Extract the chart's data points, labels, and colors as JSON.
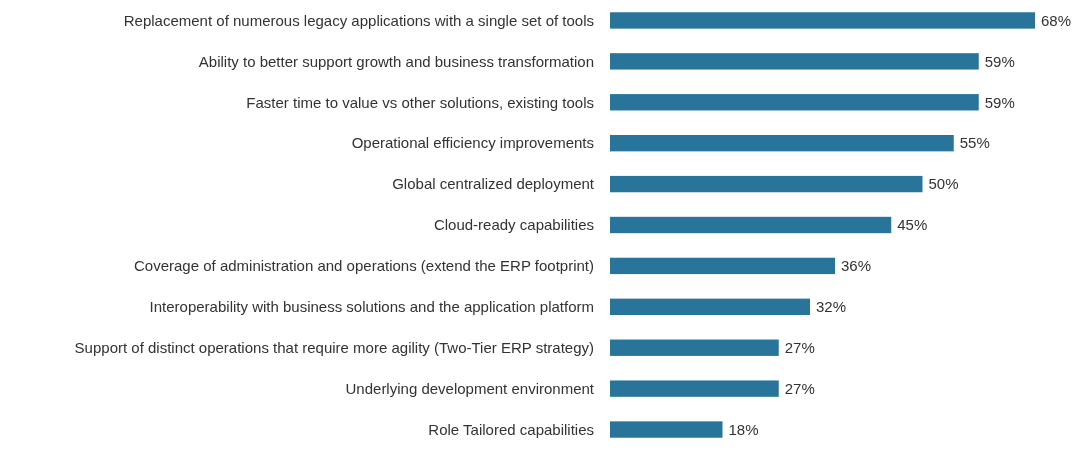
{
  "chart_data": {
    "type": "bar",
    "orientation": "horizontal",
    "color": "#28749a",
    "categories": [
      "Replacement of numerous legacy applications with a single set of tools",
      "Ability to better support growth and business transformation",
      "Faster time to value vs other solutions, existing tools",
      "Operational efficiency improvements",
      "Global centralized deployment",
      "Cloud-ready capabilities",
      "Coverage of administration and operations (extend the ERP footprint)",
      "Interoperability with business solutions and the application platform",
      "Support of distinct operations that require more agility (Two-Tier ERP strategy)",
      "Underlying development environment",
      "Role Tailored capabilities"
    ],
    "values": [
      68,
      59,
      59,
      55,
      50,
      45,
      36,
      32,
      27,
      27,
      18
    ],
    "value_labels": [
      "68%",
      "59%",
      "59%",
      "55%",
      "50%",
      "45%",
      "36%",
      "32%",
      "27%",
      "27%",
      "18%"
    ]
  }
}
